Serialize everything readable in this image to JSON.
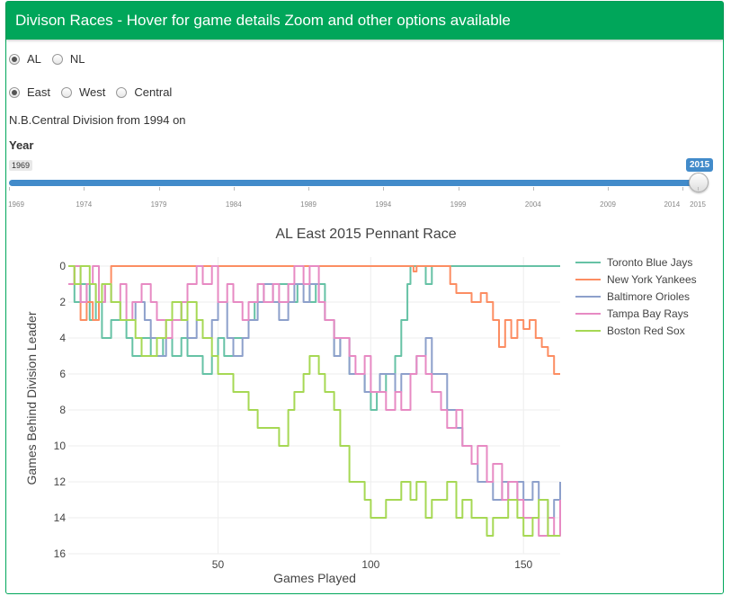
{
  "header": {
    "title": "Divison Races - Hover for game details Zoom and other options available"
  },
  "league": {
    "options": [
      {
        "label": "AL",
        "checked": true
      },
      {
        "label": "NL",
        "checked": false
      }
    ]
  },
  "division": {
    "options": [
      {
        "label": "East",
        "checked": true
      },
      {
        "label": "West",
        "checked": false
      },
      {
        "label": "Central",
        "checked": false
      }
    ]
  },
  "note": "N.B.Central Division from 1994 on",
  "year": {
    "label": "Year",
    "min": "1969",
    "max": 2015,
    "value": "2015",
    "ticks": [
      "1969",
      "1974",
      "1979",
      "1984",
      "1989",
      "1994",
      "1999",
      "2004",
      "2009",
      "2014",
      "2015"
    ]
  },
  "chart_data": {
    "type": "line",
    "title": "AL East 2015 Pennant Race",
    "xlabel": "Games Played",
    "ylabel": "Games Behind Division Leader",
    "xlim": [
      1,
      162
    ],
    "ylim": [
      16,
      -0.5
    ],
    "y_reversed": true,
    "xticks": [
      50,
      100,
      150
    ],
    "yticks": [
      0,
      2,
      4,
      6,
      8,
      10,
      12,
      14,
      16
    ],
    "legend": "top-right",
    "series": [
      {
        "name": "Toronto Blue Jays",
        "color": "#66c2a5",
        "x": [
          1,
          3,
          5,
          8,
          10,
          12,
          15,
          18,
          20,
          22,
          25,
          28,
          30,
          32,
          35,
          38,
          40,
          42,
          45,
          48,
          50,
          52,
          55,
          58,
          60,
          62,
          63,
          66,
          70,
          73,
          76,
          78,
          80,
          82,
          85,
          88,
          90,
          93,
          95,
          98,
          100,
          102,
          105,
          108,
          110,
          112,
          113,
          115,
          118,
          120,
          122,
          124,
          126,
          130,
          140,
          150,
          162
        ],
        "y": [
          0,
          2,
          1,
          3,
          2,
          4,
          3,
          3,
          4,
          5,
          4,
          5,
          5,
          4,
          5,
          4,
          5,
          5,
          6,
          5,
          4,
          5,
          4,
          4,
          3,
          2,
          1,
          1,
          1,
          2,
          1,
          1,
          2,
          1,
          3,
          5,
          4,
          6,
          6,
          7,
          8,
          7,
          6,
          5,
          3,
          1,
          0,
          0,
          1,
          0,
          0,
          0,
          0,
          0,
          0,
          0,
          0
        ]
      },
      {
        "name": "New York Yankees",
        "color": "#fc8d62",
        "x": [
          1,
          3,
          5,
          7,
          9,
          11,
          13,
          15,
          20,
          30,
          40,
          50,
          60,
          70,
          80,
          90,
          100,
          110,
          113,
          114,
          115,
          118,
          121,
          123,
          124,
          126,
          128,
          130,
          133,
          136,
          138,
          140,
          142,
          144,
          146,
          148,
          150,
          152,
          154,
          156,
          158,
          160,
          162
        ],
        "y": [
          0,
          1,
          3,
          2,
          3,
          2,
          1,
          0,
          0,
          0,
          0,
          0,
          0,
          0,
          0,
          0,
          0,
          0,
          0,
          0.3,
          0,
          0,
          0,
          0,
          0,
          1,
          1.5,
          1.5,
          2,
          1.5,
          2,
          3,
          4.5,
          3,
          4,
          3,
          3.5,
          3,
          4,
          4.5,
          5,
          6,
          6
        ]
      },
      {
        "name": "Baltimore Orioles",
        "color": "#8da0cb",
        "x": [
          1,
          3,
          5,
          7,
          10,
          13,
          15,
          18,
          20,
          23,
          26,
          28,
          30,
          33,
          35,
          38,
          40,
          43,
          45,
          48,
          50,
          53,
          55,
          58,
          60,
          63,
          65,
          68,
          70,
          73,
          75,
          78,
          80,
          83,
          85,
          88,
          90,
          93,
          95,
          98,
          100,
          103,
          105,
          108,
          110,
          113,
          115,
          118,
          120,
          123,
          125,
          128,
          130,
          133,
          135,
          138,
          140,
          143,
          145,
          148,
          150,
          153,
          155,
          158,
          160,
          162
        ],
        "y": [
          1,
          1,
          2,
          1,
          2,
          1,
          2,
          3,
          3,
          2,
          3,
          4,
          5,
          4,
          3,
          2,
          4,
          3,
          4,
          3,
          2,
          4,
          5,
          4,
          3,
          2,
          1,
          2,
          3,
          2,
          1,
          2,
          1,
          2,
          3,
          5,
          4,
          6,
          6,
          7,
          7,
          6,
          6,
          7,
          6,
          6,
          5,
          4,
          6,
          6,
          8,
          9,
          10,
          11,
          12,
          12,
          13,
          12,
          13,
          12,
          13,
          12,
          13,
          14,
          13,
          12
        ]
      },
      {
        "name": "Tampa Bay Rays",
        "color": "#e78ac3",
        "x": [
          1,
          3,
          5,
          7,
          9,
          11,
          13,
          15,
          18,
          20,
          22,
          25,
          28,
          30,
          33,
          35,
          38,
          40,
          43,
          45,
          48,
          50,
          53,
          55,
          58,
          60,
          63,
          65,
          68,
          70,
          73,
          75,
          78,
          80,
          83,
          85,
          88,
          90,
          93,
          95,
          98,
          100,
          103,
          105,
          108,
          110,
          113,
          115,
          118,
          120,
          123,
          125,
          128,
          130,
          133,
          135,
          138,
          140,
          143,
          145,
          148,
          150,
          153,
          155,
          158,
          160,
          162
        ],
        "y": [
          1,
          0,
          2,
          1,
          0,
          2,
          1,
          2,
          1,
          3,
          2,
          1,
          2,
          3,
          4,
          3,
          2,
          1,
          0,
          1,
          0,
          2,
          1,
          2,
          3,
          2,
          1,
          2,
          1,
          2,
          1,
          0,
          1,
          0,
          2,
          3,
          4,
          4,
          5,
          6,
          5,
          7,
          7,
          8,
          7,
          8,
          6,
          5,
          6,
          7,
          8,
          9,
          8,
          10,
          11,
          10,
          12,
          11,
          13,
          12,
          13,
          14,
          14,
          15,
          14,
          15,
          13
        ]
      },
      {
        "name": "Boston Red Sox",
        "color": "#a6d854",
        "x": [
          1,
          3,
          5,
          8,
          10,
          12,
          15,
          18,
          20,
          23,
          25,
          28,
          30,
          33,
          35,
          38,
          40,
          43,
          45,
          48,
          50,
          53,
          55,
          58,
          60,
          63,
          65,
          68,
          70,
          73,
          75,
          78,
          80,
          83,
          85,
          88,
          90,
          93,
          95,
          98,
          100,
          103,
          105,
          108,
          110,
          113,
          115,
          118,
          120,
          123,
          125,
          128,
          130,
          133,
          135,
          138,
          140,
          143,
          145,
          148,
          150,
          153,
          155,
          158,
          160,
          162
        ],
        "y": [
          0,
          1,
          0,
          1,
          2,
          1,
          2,
          3,
          3,
          4,
          5,
          5,
          4,
          3,
          2,
          3,
          2,
          3,
          4,
          5,
          6,
          6,
          7,
          7,
          8,
          9,
          9,
          9,
          10,
          8,
          7,
          6,
          5,
          6,
          7,
          8,
          10,
          12,
          12,
          13,
          14,
          14,
          13,
          13,
          12,
          13,
          12,
          14,
          13,
          13,
          12,
          14,
          13,
          14,
          14,
          15,
          14,
          14,
          13,
          14,
          15,
          14,
          13,
          15,
          15,
          15
        ]
      }
    ]
  }
}
